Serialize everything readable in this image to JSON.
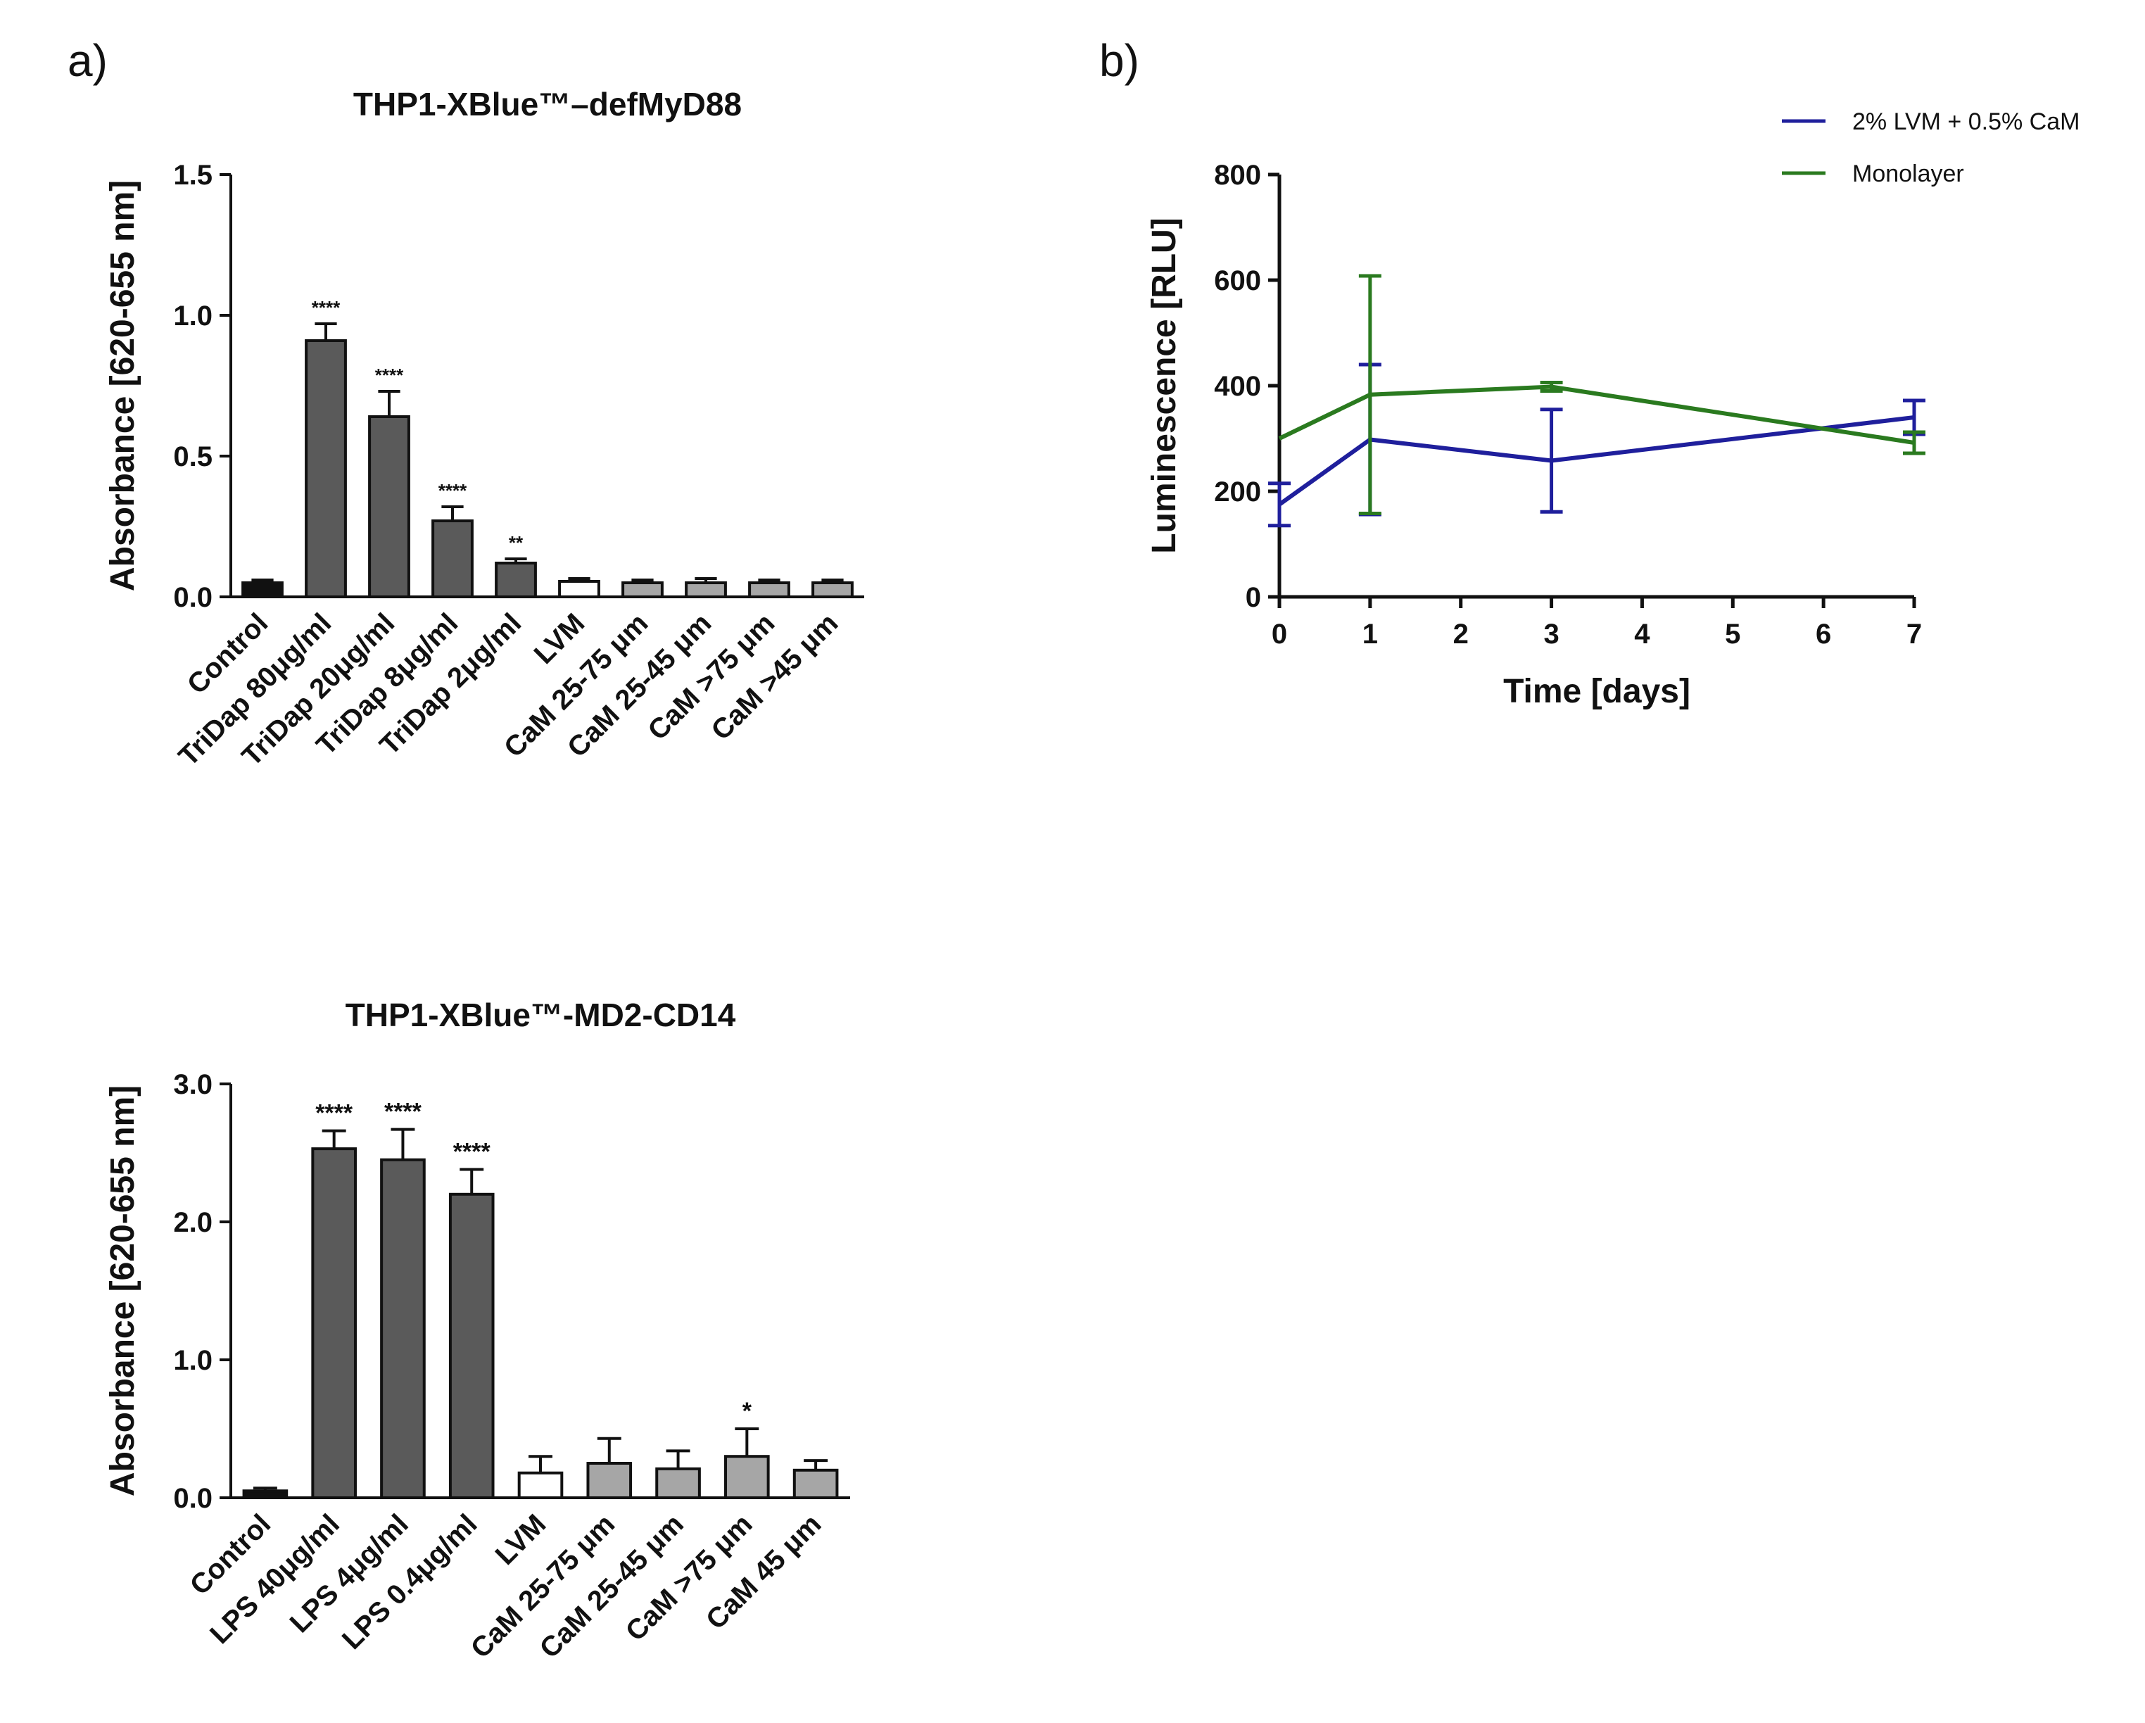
{
  "panels": {
    "a_label": "a)",
    "b_label": "b)"
  },
  "chart_data": [
    {
      "type": "bar",
      "title": "THP1-XBlue™–defMyD88",
      "xlabel": "",
      "ylabel": "Absorbance [620-655 nm]",
      "ylim": [
        0,
        1.5
      ],
      "yticks": [
        "0.0",
        "0.5",
        "1.0",
        "1.5"
      ],
      "categories": [
        "Control",
        "TriDap 80μg/ml",
        "TriDap 20μg/ml",
        "TriDap 8μg/ml",
        "TriDap 2μg/ml",
        "LVM",
        "CaM 25-75 μm",
        "CaM 25-45 μm",
        "CaM >75  μm",
        "CaM >45  μm"
      ],
      "values": [
        0.05,
        0.91,
        0.64,
        0.27,
        0.12,
        0.055,
        0.05,
        0.05,
        0.05,
        0.05
      ],
      "errors": [
        0.01,
        0.06,
        0.09,
        0.05,
        0.015,
        0.01,
        0.01,
        0.015,
        0.01,
        0.01
      ],
      "significance": [
        "",
        "****",
        "****",
        "****",
        "**",
        "",
        "",
        "",
        "",
        ""
      ],
      "bar_colors": [
        "#111111",
        "#5a5a5a",
        "#5a5a5a",
        "#5a5a5a",
        "#5a5a5a",
        "#ffffff",
        "#a6a6a6",
        "#a6a6a6",
        "#a6a6a6",
        "#a6a6a6"
      ],
      "grid": false
    },
    {
      "type": "bar",
      "title": "THP1-XBlue™-MD2-CD14",
      "xlabel": "",
      "ylabel": "Absorbance [620-655 nm]",
      "ylim": [
        0,
        3.0
      ],
      "yticks": [
        "0.0",
        "1.0",
        "2.0",
        "3.0"
      ],
      "categories": [
        "Control",
        "LPS 40μg/ml",
        "LPS 4μg/ml",
        "LPS 0.4μg/ml",
        "LVM",
        "CaM 25-75 μm",
        "CaM 25-45 μm",
        "CaM >75 μm",
        "CaM 45 μm"
      ],
      "values": [
        0.05,
        2.53,
        2.45,
        2.2,
        0.18,
        0.25,
        0.21,
        0.3,
        0.2
      ],
      "errors": [
        0.02,
        0.13,
        0.22,
        0.18,
        0.12,
        0.18,
        0.13,
        0.2,
        0.07
      ],
      "significance": [
        "",
        "****",
        "****",
        "****",
        "",
        "",
        "",
        "*",
        ""
      ],
      "bar_colors": [
        "#111111",
        "#5a5a5a",
        "#5a5a5a",
        "#5a5a5a",
        "#ffffff",
        "#a6a6a6",
        "#a6a6a6",
        "#a6a6a6",
        "#a6a6a6"
      ],
      "grid": false
    },
    {
      "type": "line",
      "title": "",
      "xlabel": "Time [days]",
      "ylabel": "Luminescence [RLU]",
      "xlim": [
        0,
        7
      ],
      "ylim": [
        0,
        800
      ],
      "xticks": [
        "0",
        "1",
        "2",
        "3",
        "4",
        "5",
        "6",
        "7"
      ],
      "yticks": [
        "0",
        "200",
        "400",
        "600",
        "800"
      ],
      "legend_position": "top-right",
      "series": [
        {
          "name": "2% LVM + 0.5% CaM",
          "color": "#1f1f9c",
          "x": [
            0,
            1,
            3,
            7
          ],
          "y": [
            175,
            298,
            258,
            340
          ],
          "err": [
            40,
            142,
            97,
            32
          ]
        },
        {
          "name": "Monolayer",
          "color": "#2a7a1f",
          "x": [
            0,
            1,
            3,
            7
          ],
          "y": [
            300,
            383,
            398,
            292
          ],
          "err": [
            0,
            225,
            8,
            20
          ]
        }
      ],
      "grid": false
    }
  ]
}
